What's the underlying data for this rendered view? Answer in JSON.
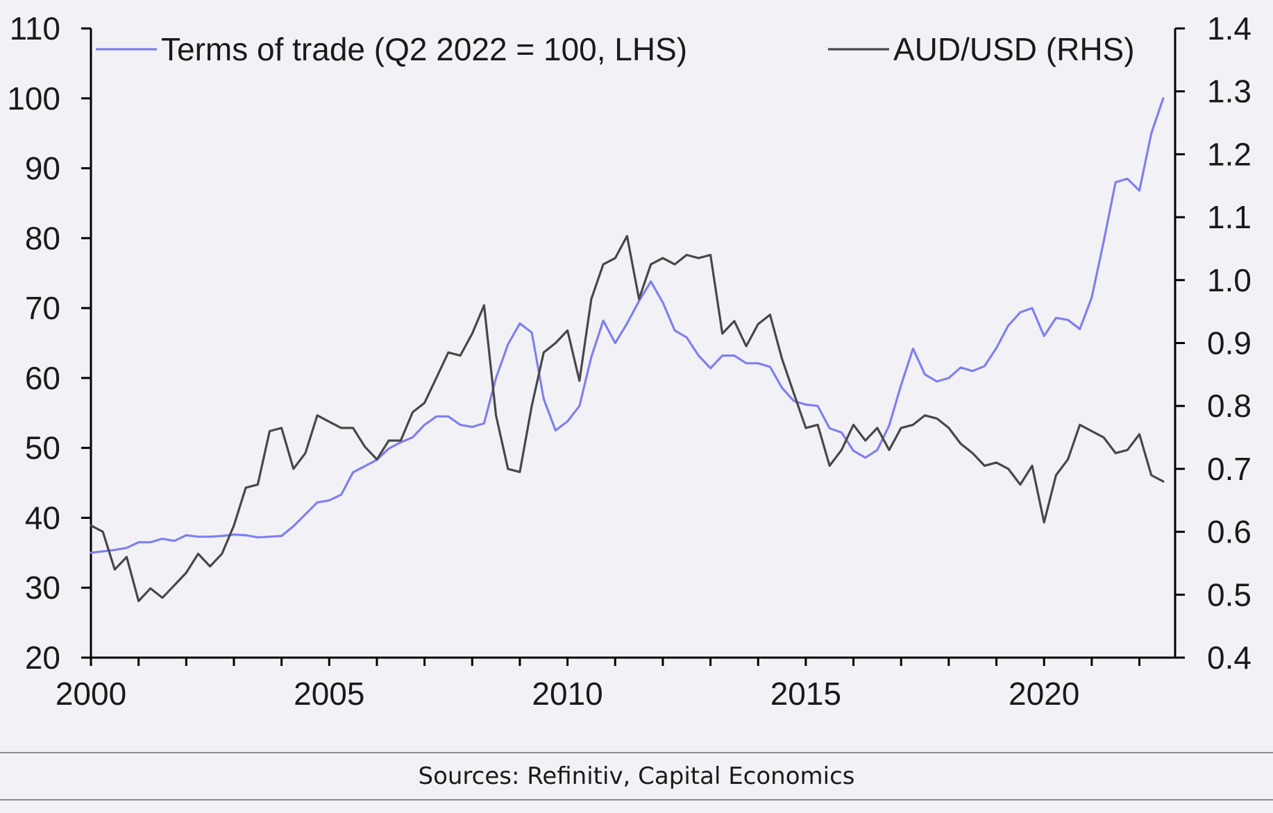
{
  "source_text": "Sources: Refinitiv, Capital Economics",
  "chart_data": {
    "type": "line",
    "title": "",
    "xlabel": "",
    "ylabel": "",
    "x_ticks": [
      "2000",
      "2005",
      "2010",
      "2015",
      "2020"
    ],
    "xlim": [
      2000,
      2022.75
    ],
    "y_left": {
      "ticks": [
        "20",
        "30",
        "40",
        "50",
        "60",
        "70",
        "80",
        "90",
        "100",
        "110"
      ],
      "lim": [
        20,
        110
      ]
    },
    "y_right": {
      "ticks": [
        "0.4",
        "0.5",
        "0.6",
        "0.7",
        "0.8",
        "0.9",
        "1.0",
        "1.1",
        "1.2",
        "1.3",
        "1.4"
      ],
      "lim": [
        0.4,
        1.4
      ]
    },
    "grid": false,
    "legend_position": "top",
    "series": [
      {
        "name": "Terms of trade (Q2 2022 = 100, LHS)",
        "axis": "left",
        "color": "#7f7ff0",
        "points": [
          [
            2000.0,
            35.0
          ],
          [
            2000.25,
            35.2
          ],
          [
            2000.5,
            35.4
          ],
          [
            2000.75,
            35.7
          ],
          [
            2001.0,
            36.5
          ],
          [
            2001.25,
            36.5
          ],
          [
            2001.5,
            37.0
          ],
          [
            2001.75,
            36.7
          ],
          [
            2002.0,
            37.5
          ],
          [
            2002.25,
            37.3
          ],
          [
            2002.5,
            37.3
          ],
          [
            2002.75,
            37.4
          ],
          [
            2003.0,
            37.6
          ],
          [
            2003.25,
            37.5
          ],
          [
            2003.5,
            37.2
          ],
          [
            2003.75,
            37.3
          ],
          [
            2004.0,
            37.4
          ],
          [
            2004.25,
            38.8
          ],
          [
            2004.5,
            40.5
          ],
          [
            2004.75,
            42.2
          ],
          [
            2005.0,
            42.5
          ],
          [
            2005.25,
            43.3
          ],
          [
            2005.5,
            46.5
          ],
          [
            2005.75,
            47.4
          ],
          [
            2006.0,
            48.3
          ],
          [
            2006.25,
            49.9
          ],
          [
            2006.5,
            50.8
          ],
          [
            2006.75,
            51.5
          ],
          [
            2007.0,
            53.3
          ],
          [
            2007.25,
            54.5
          ],
          [
            2007.5,
            54.5
          ],
          [
            2007.75,
            53.3
          ],
          [
            2008.0,
            53.0
          ],
          [
            2008.25,
            53.5
          ],
          [
            2008.5,
            60.0
          ],
          [
            2008.75,
            64.8
          ],
          [
            2009.0,
            67.8
          ],
          [
            2009.25,
            66.5
          ],
          [
            2009.5,
            57.0
          ],
          [
            2009.75,
            52.5
          ],
          [
            2010.0,
            53.8
          ],
          [
            2010.25,
            56.0
          ],
          [
            2010.5,
            63.0
          ],
          [
            2010.75,
            68.2
          ],
          [
            2011.0,
            65.0
          ],
          [
            2011.25,
            67.8
          ],
          [
            2011.5,
            71.0
          ],
          [
            2011.75,
            73.8
          ],
          [
            2012.0,
            70.8
          ],
          [
            2012.25,
            66.8
          ],
          [
            2012.5,
            65.8
          ],
          [
            2012.75,
            63.2
          ],
          [
            2013.0,
            61.4
          ],
          [
            2013.25,
            63.2
          ],
          [
            2013.5,
            63.2
          ],
          [
            2013.75,
            62.1
          ],
          [
            2014.0,
            62.1
          ],
          [
            2014.25,
            61.6
          ],
          [
            2014.5,
            58.6
          ],
          [
            2014.75,
            56.7
          ],
          [
            2015.0,
            56.2
          ],
          [
            2015.25,
            56.0
          ],
          [
            2015.5,
            52.8
          ],
          [
            2015.75,
            52.2
          ],
          [
            2016.0,
            49.6
          ],
          [
            2016.25,
            48.6
          ],
          [
            2016.5,
            49.7
          ],
          [
            2016.75,
            53.2
          ],
          [
            2017.0,
            59.0
          ],
          [
            2017.25,
            64.2
          ],
          [
            2017.5,
            60.5
          ],
          [
            2017.75,
            59.5
          ],
          [
            2018.0,
            60.0
          ],
          [
            2018.25,
            61.5
          ],
          [
            2018.5,
            61.0
          ],
          [
            2018.75,
            61.7
          ],
          [
            2019.0,
            64.3
          ],
          [
            2019.25,
            67.5
          ],
          [
            2019.5,
            69.4
          ],
          [
            2019.75,
            70.0
          ],
          [
            2020.0,
            66.0
          ],
          [
            2020.25,
            68.6
          ],
          [
            2020.5,
            68.3
          ],
          [
            2020.75,
            67.0
          ],
          [
            2021.0,
            71.5
          ],
          [
            2021.25,
            79.5
          ],
          [
            2021.5,
            88.0
          ],
          [
            2021.75,
            88.5
          ],
          [
            2022.0,
            86.8
          ],
          [
            2022.25,
            95.0
          ],
          [
            2022.5,
            100.0
          ]
        ]
      },
      {
        "name": "AUD/USD (RHS)",
        "axis": "right",
        "color": "#474747",
        "points": [
          [
            2000.0,
            0.61
          ],
          [
            2000.25,
            0.6
          ],
          [
            2000.5,
            0.54
          ],
          [
            2000.75,
            0.56
          ],
          [
            2001.0,
            0.49
          ],
          [
            2001.25,
            0.51
          ],
          [
            2001.5,
            0.495
          ],
          [
            2001.75,
            0.515
          ],
          [
            2002.0,
            0.535
          ],
          [
            2002.25,
            0.565
          ],
          [
            2002.5,
            0.545
          ],
          [
            2002.75,
            0.565
          ],
          [
            2003.0,
            0.61
          ],
          [
            2003.25,
            0.67
          ],
          [
            2003.5,
            0.675
          ],
          [
            2003.75,
            0.76
          ],
          [
            2004.0,
            0.765
          ],
          [
            2004.25,
            0.7
          ],
          [
            2004.5,
            0.725
          ],
          [
            2004.75,
            0.785
          ],
          [
            2005.0,
            0.775
          ],
          [
            2005.25,
            0.765
          ],
          [
            2005.5,
            0.765
          ],
          [
            2005.75,
            0.735
          ],
          [
            2006.0,
            0.715
          ],
          [
            2006.25,
            0.745
          ],
          [
            2006.5,
            0.745
          ],
          [
            2006.75,
            0.79
          ],
          [
            2007.0,
            0.805
          ],
          [
            2007.25,
            0.845
          ],
          [
            2007.5,
            0.885
          ],
          [
            2007.75,
            0.88
          ],
          [
            2008.0,
            0.915
          ],
          [
            2008.25,
            0.96
          ],
          [
            2008.5,
            0.785
          ],
          [
            2008.75,
            0.7
          ],
          [
            2009.0,
            0.695
          ],
          [
            2009.25,
            0.8
          ],
          [
            2009.5,
            0.885
          ],
          [
            2009.75,
            0.9
          ],
          [
            2010.0,
            0.92
          ],
          [
            2010.25,
            0.84
          ],
          [
            2010.5,
            0.97
          ],
          [
            2010.75,
            1.025
          ],
          [
            2011.0,
            1.035
          ],
          [
            2011.25,
            1.07
          ],
          [
            2011.5,
            0.97
          ],
          [
            2011.75,
            1.025
          ],
          [
            2012.0,
            1.035
          ],
          [
            2012.25,
            1.025
          ],
          [
            2012.5,
            1.04
          ],
          [
            2012.75,
            1.035
          ],
          [
            2013.0,
            1.04
          ],
          [
            2013.25,
            0.915
          ],
          [
            2013.5,
            0.935
          ],
          [
            2013.75,
            0.895
          ],
          [
            2014.0,
            0.93
          ],
          [
            2014.25,
            0.945
          ],
          [
            2014.5,
            0.875
          ],
          [
            2014.75,
            0.82
          ],
          [
            2015.0,
            0.765
          ],
          [
            2015.25,
            0.77
          ],
          [
            2015.5,
            0.705
          ],
          [
            2015.75,
            0.73
          ],
          [
            2016.0,
            0.77
          ],
          [
            2016.25,
            0.745
          ],
          [
            2016.5,
            0.765
          ],
          [
            2016.75,
            0.73
          ],
          [
            2017.0,
            0.765
          ],
          [
            2017.25,
            0.77
          ],
          [
            2017.5,
            0.785
          ],
          [
            2017.75,
            0.78
          ],
          [
            2018.0,
            0.765
          ],
          [
            2018.25,
            0.74
          ],
          [
            2018.5,
            0.725
          ],
          [
            2018.75,
            0.705
          ],
          [
            2019.0,
            0.71
          ],
          [
            2019.25,
            0.7
          ],
          [
            2019.5,
            0.675
          ],
          [
            2019.75,
            0.705
          ],
          [
            2020.0,
            0.615
          ],
          [
            2020.25,
            0.69
          ],
          [
            2020.5,
            0.715
          ],
          [
            2020.75,
            0.77
          ],
          [
            2021.0,
            0.76
          ],
          [
            2021.25,
            0.75
          ],
          [
            2021.5,
            0.725
          ],
          [
            2021.75,
            0.73
          ],
          [
            2022.0,
            0.755
          ],
          [
            2022.25,
            0.69
          ],
          [
            2022.5,
            0.68
          ]
        ]
      }
    ]
  }
}
